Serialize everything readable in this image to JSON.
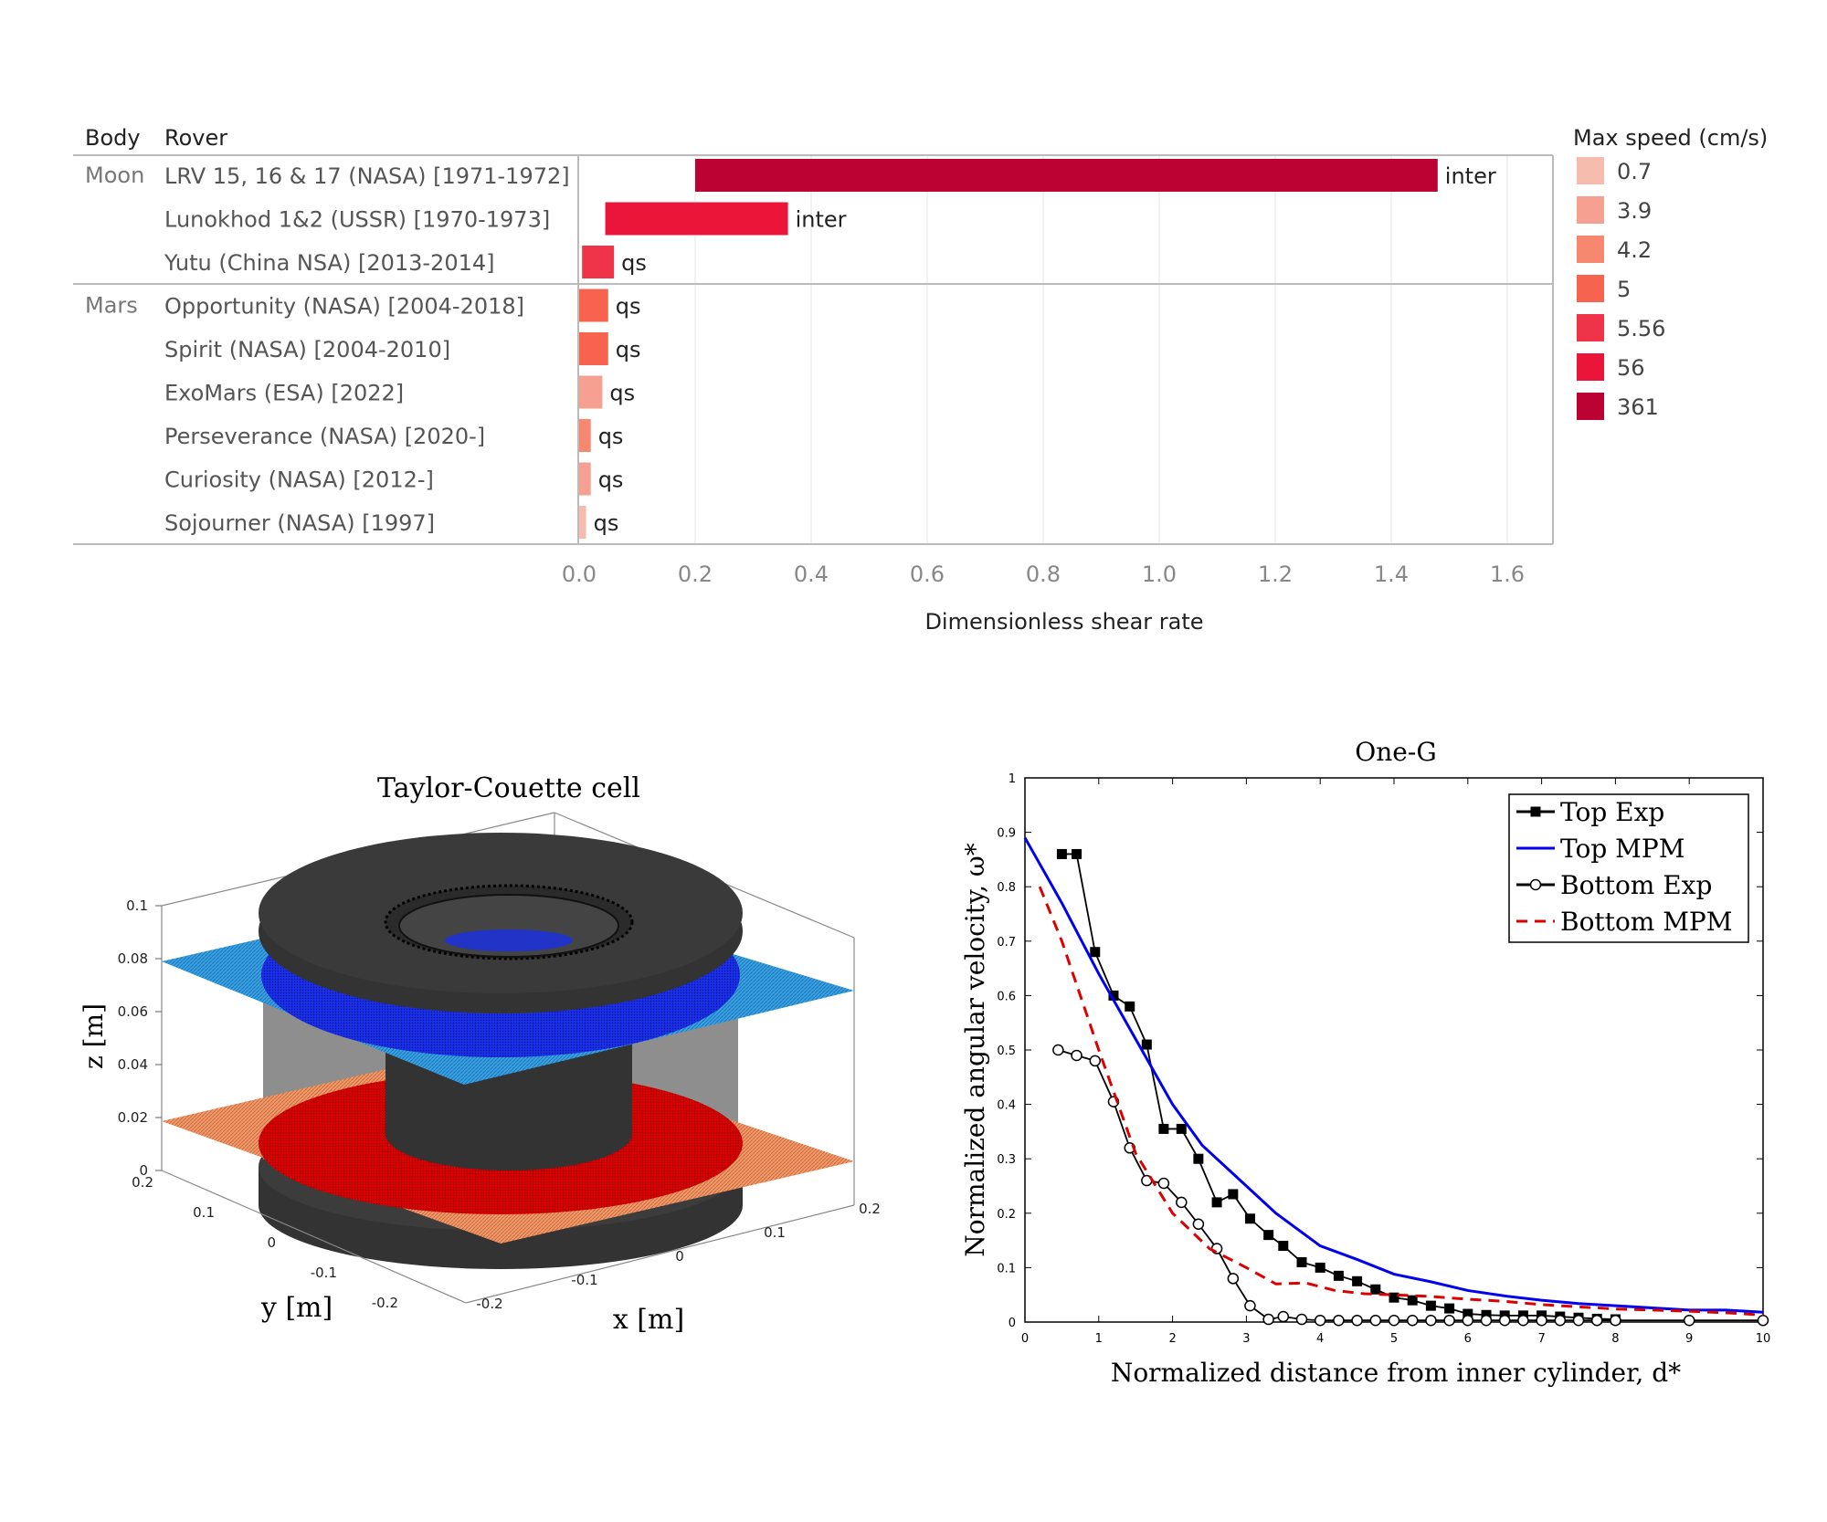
{
  "chart_data": [
    {
      "type": "bar",
      "orientation": "horizontal",
      "header_body": "Body",
      "header_rover": "Rover",
      "xlabel": "Dimensionless shear rate",
      "xlim": [
        0,
        1.6
      ],
      "xticks": [
        "0.0",
        "0.2",
        "0.4",
        "0.6",
        "0.8",
        "1.0",
        "1.2",
        "1.4",
        "1.6"
      ],
      "groups": [
        {
          "body": "Moon",
          "rows": [
            {
              "rover": "LRV 15, 16 & 17 (NASA) [1971-1972]",
              "start": 0.2,
              "value": 1.48,
              "label": "inter",
              "max_speed": "361"
            },
            {
              "rover": "Lunokhod 1&2 (USSR) [1970-1973]",
              "start": 0.045,
              "value": 0.36,
              "label": "inter",
              "max_speed": "56"
            },
            {
              "rover": "Yutu (China NSA) [2013-2014]",
              "start": 0.005,
              "value": 0.06,
              "label": "qs",
              "max_speed": "5.56"
            }
          ]
        },
        {
          "body": "Mars",
          "rows": [
            {
              "rover": "Opportunity (NASA) [2004-2018]",
              "start": 0.0,
              "value": 0.05,
              "label": "qs",
              "max_speed": "5"
            },
            {
              "rover": "Spirit (NASA) [2004-2010]",
              "start": 0.0,
              "value": 0.05,
              "label": "qs",
              "max_speed": "5"
            },
            {
              "rover": "ExoMars (ESA) [2022]",
              "start": 0.0,
              "value": 0.04,
              "label": "qs",
              "max_speed": "3.9"
            },
            {
              "rover": "Perseverance (NASA) [2020-]",
              "start": 0.0,
              "value": 0.02,
              "label": "qs",
              "max_speed": "4.2"
            },
            {
              "rover": "Curiosity (NASA) [2012-]",
              "start": 0.0,
              "value": 0.02,
              "label": "qs",
              "max_speed": "3.9"
            },
            {
              "rover": "Sojourner (NASA) [1997]",
              "start": 0.0,
              "value": 0.012,
              "label": "qs",
              "max_speed": "0.7"
            }
          ]
        }
      ],
      "legend": {
        "title": "Max speed (cm/s)",
        "placement": "right",
        "items": [
          {
            "label": "0.7",
            "color": "#f6bcae"
          },
          {
            "label": "3.9",
            "color": "#f6a091"
          },
          {
            "label": "4.2",
            "color": "#f7876f"
          },
          {
            "label": "5",
            "color": "#f8634f"
          },
          {
            "label": "5.56",
            "color": "#ef3348"
          },
          {
            "label": "56",
            "color": "#ea1539"
          },
          {
            "label": "361",
            "color": "#bc0233"
          }
        ]
      }
    },
    {
      "type": "3d-diagram",
      "title": "Taylor-Couette cell",
      "xlabel": "x [m]",
      "ylabel": "y [m]",
      "zlabel": "z [m]",
      "zticks": [
        "0",
        "0.02",
        "0.04",
        "0.06",
        "0.08",
        "0.1"
      ],
      "xticks": [
        "-0.2",
        "-0.1",
        "0",
        "0.1",
        "0.2"
      ],
      "yticks": [
        "-0.2",
        "-0.1",
        "0",
        "0.1",
        "0.2"
      ],
      "colors": {
        "top_plane": "#2f94d8",
        "top_particles": "#1f2fe0",
        "bottom_plane": "#e9895a",
        "bottom_particles": "#d40000",
        "cylinder": "#333333"
      }
    },
    {
      "type": "line",
      "title": "One-G",
      "xlabel": "Normalized distance from inner cylinder, d*",
      "ylabel": "Normalized angular velocity, ω*",
      "xlim": [
        0,
        10
      ],
      "ylim": [
        0,
        1
      ],
      "xticks": [
        "0",
        "1",
        "2",
        "3",
        "4",
        "5",
        "6",
        "7",
        "8",
        "9",
        "10"
      ],
      "yticks": [
        "0",
        "0.1",
        "0.2",
        "0.3",
        "0.4",
        "0.5",
        "0.6",
        "0.7",
        "0.8",
        "0.9",
        "1"
      ],
      "legend_placement": "top-right",
      "series": [
        {
          "name": "Top Exp",
          "color": "#000000",
          "style": "solid-square-marker",
          "x": [
            0.5,
            0.7,
            0.95,
            1.2,
            1.42,
            1.65,
            1.88,
            2.12,
            2.35,
            2.6,
            2.82,
            3.05,
            3.3,
            3.5,
            3.75,
            4.0,
            4.25,
            4.5,
            4.75,
            5.0,
            5.25,
            5.5,
            5.75,
            6.0,
            6.25,
            6.5,
            6.75,
            7.0,
            7.25,
            7.5,
            7.75,
            8.0
          ],
          "y": [
            0.86,
            0.86,
            0.68,
            0.6,
            0.58,
            0.51,
            0.355,
            0.355,
            0.3,
            0.22,
            0.235,
            0.19,
            0.16,
            0.14,
            0.11,
            0.1,
            0.085,
            0.075,
            0.06,
            0.045,
            0.04,
            0.03,
            0.025,
            0.015,
            0.013,
            0.012,
            0.012,
            0.012,
            0.01,
            0.008,
            0.006,
            0.005
          ]
        },
        {
          "name": "Top MPM",
          "color": "#0000ee",
          "style": "solid",
          "x": [
            0,
            0.5,
            1.0,
            1.5,
            2.0,
            2.4,
            3.0,
            3.4,
            4.0,
            4.5,
            5.0,
            5.5,
            6.0,
            6.5,
            7.0,
            7.5,
            8.0,
            8.5,
            9.0,
            9.5,
            10.0
          ],
          "y": [
            0.89,
            0.77,
            0.64,
            0.52,
            0.4,
            0.325,
            0.25,
            0.2,
            0.14,
            0.115,
            0.088,
            0.074,
            0.058,
            0.048,
            0.04,
            0.034,
            0.03,
            0.026,
            0.022,
            0.022,
            0.018
          ]
        },
        {
          "name": "Bottom Exp",
          "color": "#000000",
          "style": "solid-circle-marker",
          "x": [
            0.45,
            0.7,
            0.95,
            1.2,
            1.42,
            1.65,
            1.88,
            2.12,
            2.35,
            2.6,
            2.82,
            3.05,
            3.3,
            3.5,
            3.75,
            4.0,
            4.25,
            4.5,
            4.75,
            5.0,
            5.25,
            5.5,
            5.75,
            6.0,
            6.25,
            6.5,
            6.75,
            7.0,
            7.25,
            7.5,
            7.75,
            8.0,
            9.0,
            10.0
          ],
          "y": [
            0.5,
            0.49,
            0.48,
            0.405,
            0.32,
            0.26,
            0.255,
            0.22,
            0.18,
            0.135,
            0.08,
            0.03,
            0.005,
            0.01,
            0.005,
            0.003,
            0.003,
            0.003,
            0.003,
            0.003,
            0.003,
            0.003,
            0.003,
            0.003,
            0.003,
            0.003,
            0.003,
            0.003,
            0.003,
            0.003,
            0.003,
            0.003,
            0.003,
            0.003
          ]
        },
        {
          "name": "Bottom MPM",
          "color": "#dd0000",
          "style": "dashed",
          "x": [
            0.2,
            0.5,
            1.0,
            1.5,
            2.0,
            2.5,
            3.0,
            3.4,
            3.8,
            4.2,
            4.6,
            5.0,
            5.5,
            6.0,
            6.5,
            7.0,
            7.5,
            8.0,
            8.5,
            9.0,
            9.5,
            10.0
          ],
          "y": [
            0.8,
            0.7,
            0.5,
            0.31,
            0.2,
            0.135,
            0.1,
            0.07,
            0.072,
            0.058,
            0.052,
            0.05,
            0.047,
            0.042,
            0.038,
            0.032,
            0.028,
            0.024,
            0.022,
            0.02,
            0.017,
            0.013
          ]
        }
      ]
    }
  ]
}
